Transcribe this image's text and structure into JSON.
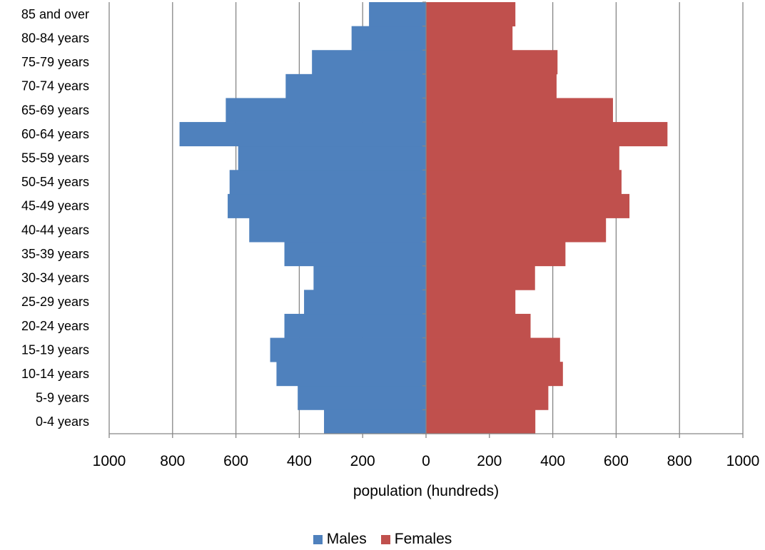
{
  "chart_data": {
    "type": "bar",
    "orientation": "horizontal",
    "layout": "population-pyramid",
    "categories": [
      "0-4 years",
      "5-9 years",
      "10-14 years",
      "15-19 years",
      "20-24 years",
      "25-29 years",
      "30-34 years",
      "35-39 years",
      "40-44 years",
      "45-49 years",
      "50-54 years",
      "55-59 years",
      "60-64 years",
      "65-69 years",
      "70-74 years",
      "75-79 years",
      "80-84 years",
      "85 and over"
    ],
    "series": [
      {
        "name": "Males",
        "color": "#4f81bd",
        "side": "left",
        "values": [
          322,
          405,
          472,
          492,
          447,
          385,
          355,
          447,
          558,
          626,
          620,
          593,
          778,
          632,
          443,
          360,
          235,
          180
        ]
      },
      {
        "name": "Females",
        "color": "#c0504d",
        "side": "right",
        "values": [
          345,
          386,
          432,
          423,
          330,
          282,
          344,
          440,
          568,
          642,
          617,
          610,
          762,
          590,
          412,
          415,
          273,
          282
        ]
      }
    ],
    "xlabel": "population (hundreds)",
    "ylabel": "",
    "xlim": [
      -1000,
      1000
    ],
    "xticks": [
      -1000,
      -800,
      -600,
      -400,
      -200,
      0,
      200,
      400,
      600,
      800,
      1000
    ],
    "xtick_labels": [
      "1000",
      "800",
      "600",
      "400",
      "200",
      "0",
      "200",
      "400",
      "600",
      "800",
      "1000"
    ],
    "grid": "vertical",
    "legend_position": "bottom"
  },
  "legend": {
    "males_label": "Males",
    "females_label": "Females",
    "males_color": "#4f81bd",
    "females_color": "#c0504d"
  }
}
